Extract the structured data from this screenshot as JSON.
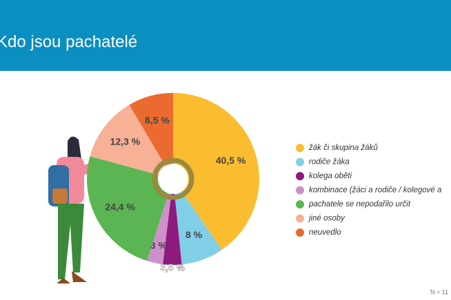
{
  "chart_data": {
    "type": "pie",
    "title": "Kdo jsou pachatelé",
    "categories": [
      "žák či skupina žáků",
      "rodiče žáka",
      "kolega oběti",
      "kombinace (žáci a rodiče / kolegové a",
      "pachatele se nepodařilo určit",
      "jiné osoby",
      "neuvedlo"
    ],
    "values": [
      40.5,
      8,
      3.5,
      3,
      24.4,
      12.3,
      8.5
    ],
    "value_labels": [
      "40,5 %",
      "8 %",
      "3,5 %",
      "3 %",
      "24,4 %",
      "12,3 %",
      "8,5 %"
    ],
    "colors": [
      "#fbbd30",
      "#80cfe6",
      "#8e1a7e",
      "#cd90c9",
      "#5ab552",
      "#f6b196",
      "#ea6a30"
    ],
    "note": "N = 11"
  }
}
